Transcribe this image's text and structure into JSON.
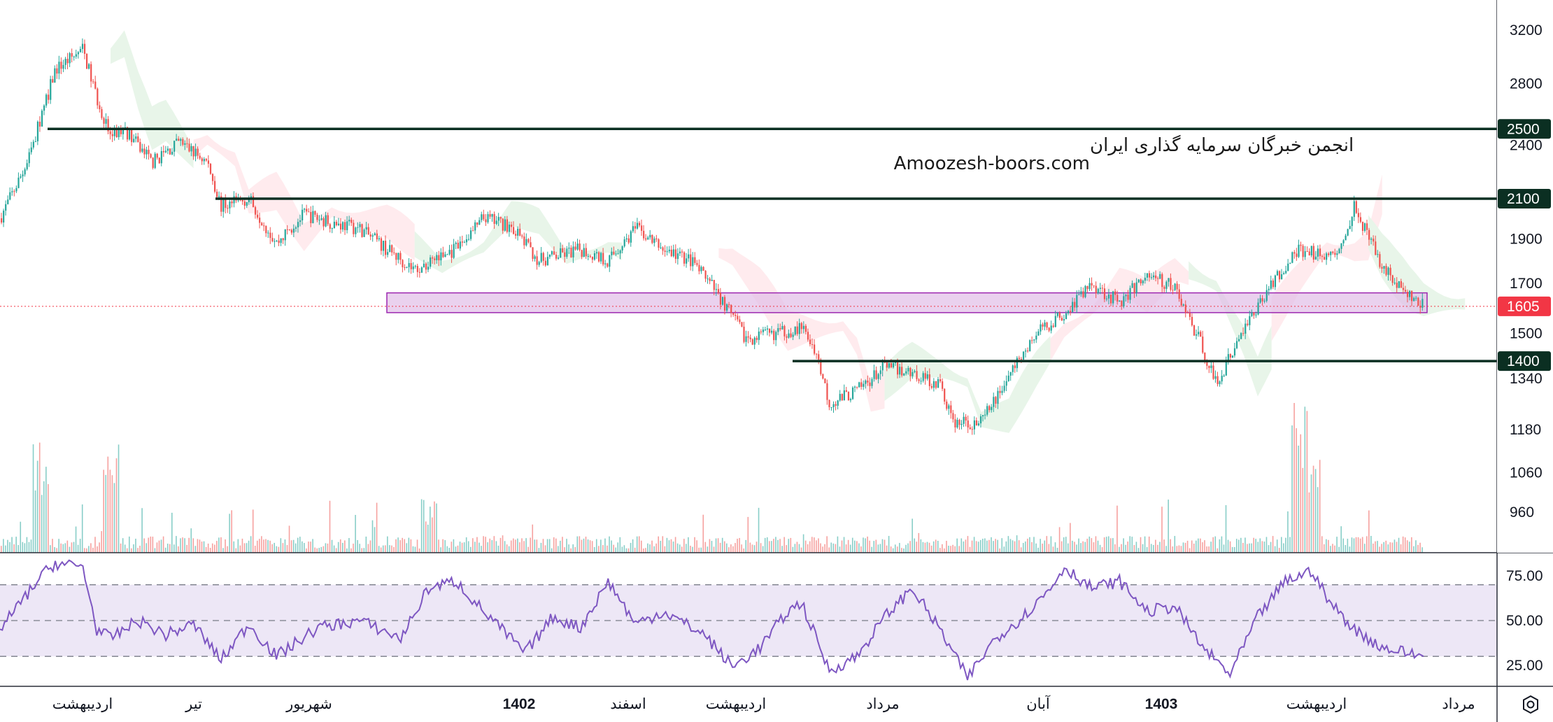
{
  "watermark": {
    "line1": "انجمن خبرگان سرمایه گذاری ایران",
    "line2": "Amoozesh-boors.com"
  },
  "colors": {
    "up": "#26a69a",
    "down": "#ef5350",
    "level_line": "#0b2f22",
    "rsi": "#7e57c2",
    "rsi_band": "#ede7f6",
    "zone_fill": "#e1bee7",
    "zone_border": "#9c27b0",
    "last_price_tag": "#f23645",
    "cloud_bull": "#e8f5e9",
    "cloud_bear": "#ffebee"
  },
  "icons": {
    "settings": "gear-hexagon-icon"
  },
  "chart_data": [
    {
      "type": "candlestick",
      "scale": "log",
      "price_axis": {
        "ticks": [
          "3200",
          "2800",
          "2400",
          "1900",
          "1700",
          "1500",
          "1340",
          "1180",
          "1060",
          "960"
        ],
        "ylim": [
          900,
          3300
        ]
      },
      "levels": [
        {
          "value": 2500,
          "label": "2500"
        },
        {
          "value": 2100,
          "label": "2100"
        },
        {
          "value": 1400,
          "label": "1400"
        }
      ],
      "support_zone": [
        1580,
        1660
      ],
      "last_price": {
        "value": 1605,
        "label": "1605"
      },
      "time_axis": [
        {
          "label": "اردیبهشت",
          "year": false
        },
        {
          "label": "تیر",
          "year": false
        },
        {
          "label": "شهریور",
          "year": false
        },
        {
          "label": "1402",
          "year": true
        },
        {
          "label": "اسفند",
          "year": false
        },
        {
          "label": "اردیبهشت",
          "year": false
        },
        {
          "label": "مرداد",
          "year": false
        },
        {
          "label": "آبان",
          "year": false
        },
        {
          "label": "1403",
          "year": true
        },
        {
          "label": "اردیبهشت",
          "year": false
        },
        {
          "label": "مرداد",
          "year": false
        }
      ],
      "price_path": [
        [
          0,
          2000
        ],
        [
          2,
          2300
        ],
        [
          4,
          2900
        ],
        [
          6,
          3050
        ],
        [
          7,
          2700
        ],
        [
          8,
          2450
        ],
        [
          9,
          2500
        ],
        [
          11,
          2300
        ],
        [
          13,
          2420
        ],
        [
          15,
          2300
        ],
        [
          16,
          2060
        ],
        [
          18,
          2100
        ],
        [
          20,
          1880
        ],
        [
          22,
          2020
        ],
        [
          24,
          1980
        ],
        [
          26,
          1950
        ],
        [
          28,
          1850
        ],
        [
          30,
          1760
        ],
        [
          33,
          1850
        ],
        [
          35,
          2000
        ],
        [
          37,
          1960
        ],
        [
          39,
          1800
        ],
        [
          42,
          1850
        ],
        [
          44,
          1800
        ],
        [
          46,
          1950
        ],
        [
          48,
          1850
        ],
        [
          50,
          1800
        ],
        [
          52,
          1650
        ],
        [
          54,
          1480
        ],
        [
          56,
          1500
        ],
        [
          58,
          1520
        ],
        [
          59,
          1440
        ],
        [
          60,
          1260
        ],
        [
          62,
          1300
        ],
        [
          64,
          1380
        ],
        [
          66,
          1360
        ],
        [
          68,
          1320
        ],
        [
          69,
          1200
        ],
        [
          71,
          1200
        ],
        [
          73,
          1350
        ],
        [
          75,
          1500
        ],
        [
          77,
          1580
        ],
        [
          79,
          1700
        ],
        [
          81,
          1620
        ],
        [
          83,
          1740
        ],
        [
          85,
          1680
        ],
        [
          86,
          1560
        ],
        [
          87,
          1450
        ],
        [
          88,
          1320
        ],
        [
          90,
          1520
        ],
        [
          92,
          1700
        ],
        [
          94,
          1850
        ],
        [
          96,
          1820
        ],
        [
          97,
          1840
        ],
        [
          98,
          2080
        ],
        [
          99,
          1900
        ],
        [
          100,
          1780
        ],
        [
          101,
          1700
        ],
        [
          102,
          1640
        ],
        [
          103,
          1605
        ]
      ]
    },
    {
      "type": "volume",
      "note_peaks": [
        [
          3,
          0.75
        ],
        [
          8,
          0.75
        ],
        [
          31,
          0.35
        ],
        [
          94,
          1.0
        ],
        [
          95,
          0.7
        ]
      ]
    },
    {
      "type": "line",
      "name": "RSI",
      "axis": {
        "ticks": [
          "75.00",
          "50.00",
          "25.00"
        ],
        "ylim": [
          15,
          85
        ]
      },
      "bands": [
        30,
        50,
        70
      ],
      "values": [
        [
          0,
          45
        ],
        [
          3,
          75
        ],
        [
          4,
          82
        ],
        [
          6,
          80
        ],
        [
          7,
          45
        ],
        [
          8,
          40
        ],
        [
          10,
          50
        ],
        [
          12,
          42
        ],
        [
          14,
          48
        ],
        [
          16,
          28
        ],
        [
          18,
          48
        ],
        [
          20,
          30
        ],
        [
          23,
          46
        ],
        [
          26,
          50
        ],
        [
          29,
          40
        ],
        [
          31,
          68
        ],
        [
          33,
          72
        ],
        [
          35,
          55
        ],
        [
          38,
          32
        ],
        [
          40,
          52
        ],
        [
          42,
          46
        ],
        [
          44,
          72
        ],
        [
          46,
          48
        ],
        [
          48,
          55
        ],
        [
          51,
          42
        ],
        [
          53,
          24
        ],
        [
          55,
          35
        ],
        [
          57,
          55
        ],
        [
          58,
          60
        ],
        [
          60,
          22
        ],
        [
          62,
          30
        ],
        [
          64,
          52
        ],
        [
          66,
          68
        ],
        [
          68,
          45
        ],
        [
          70,
          18
        ],
        [
          72,
          40
        ],
        [
          74,
          52
        ],
        [
          76,
          68
        ],
        [
          77,
          80
        ],
        [
          79,
          68
        ],
        [
          81,
          72
        ],
        [
          83,
          55
        ],
        [
          85,
          58
        ],
        [
          87,
          35
        ],
        [
          89,
          20
        ],
        [
          91,
          52
        ],
        [
          93,
          72
        ],
        [
          95,
          78
        ],
        [
          96,
          62
        ],
        [
          98,
          45
        ],
        [
          100,
          35
        ],
        [
          103,
          30
        ]
      ]
    }
  ]
}
